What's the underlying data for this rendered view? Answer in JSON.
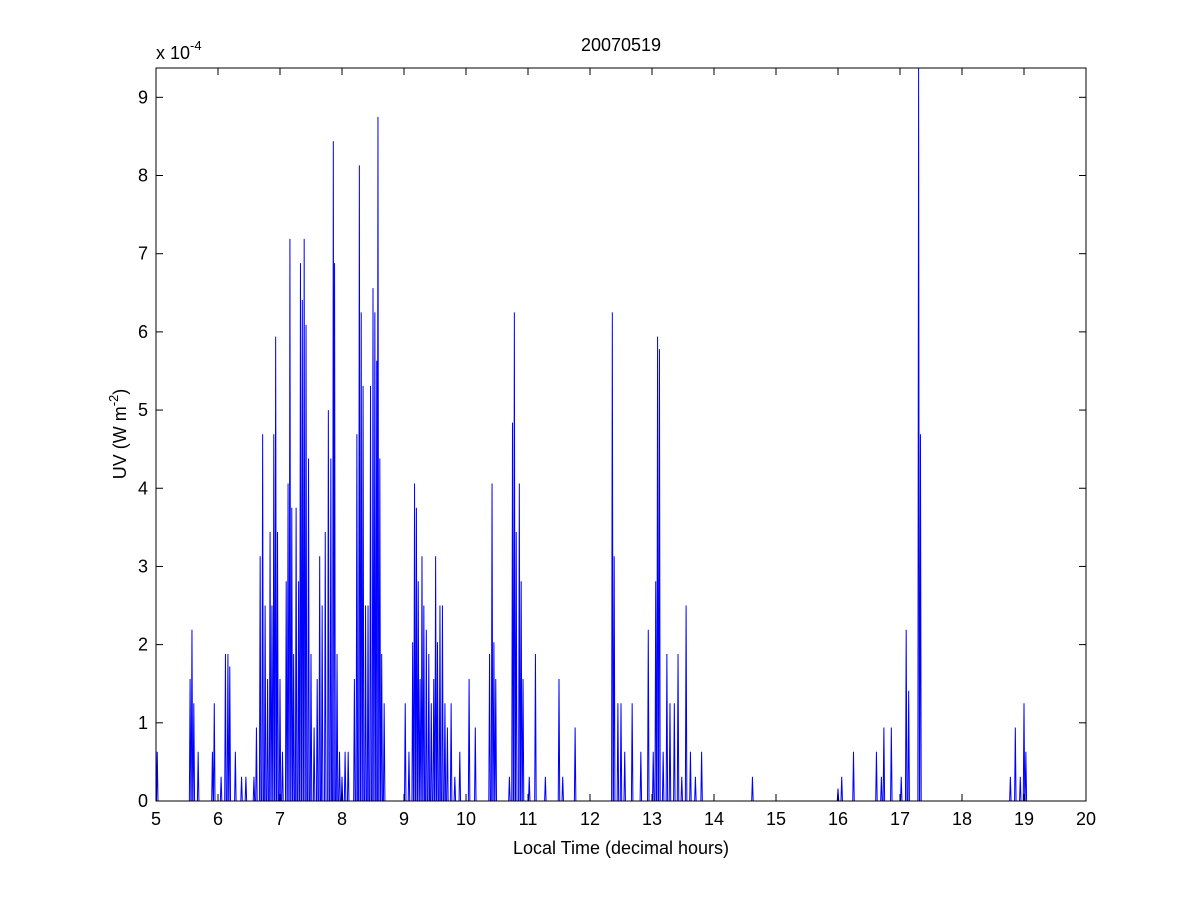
{
  "chart_data": {
    "type": "line",
    "title": "20070519",
    "xlabel": "Local Time (decimal hours)",
    "ylabel_main": "UV (W m",
    "ylabel_exp": "-2",
    "ylabel_close": ")",
    "multiplier_base": "x 10",
    "multiplier_exp": "-4",
    "xlim": [
      5,
      20
    ],
    "ylim": [
      0,
      9.375
    ],
    "xticks": [
      5,
      6,
      7,
      8,
      9,
      10,
      11,
      12,
      13,
      14,
      15,
      16,
      17,
      18,
      19,
      20
    ],
    "yticks": [
      0,
      1,
      2,
      3,
      4,
      5,
      6,
      7,
      8,
      9
    ],
    "grid": false,
    "line_color": "#0000ff",
    "y_unit_scale": "1e-4",
    "series": [
      {
        "peaks": [
          [
            5.02,
            0.63
          ],
          [
            5.55,
            1.56
          ],
          [
            5.58,
            2.19
          ],
          [
            5.61,
            1.25
          ],
          [
            5.68,
            0.63
          ],
          [
            5.91,
            0.63
          ],
          [
            5.94,
            1.25
          ],
          [
            6.05,
            0.31
          ],
          [
            6.12,
            1.88
          ],
          [
            6.16,
            1.88
          ],
          [
            6.19,
            1.72
          ],
          [
            6.28,
            0.63
          ],
          [
            6.38,
            0.31
          ],
          [
            6.45,
            0.31
          ],
          [
            6.58,
            0.31
          ],
          [
            6.62,
            0.94
          ],
          [
            6.68,
            3.13
          ],
          [
            6.72,
            4.69
          ],
          [
            6.76,
            2.5
          ],
          [
            6.8,
            1.56
          ],
          [
            6.84,
            3.44
          ],
          [
            6.87,
            2.5
          ],
          [
            6.9,
            4.69
          ],
          [
            6.93,
            5.94
          ],
          [
            6.96,
            3.44
          ],
          [
            7.0,
            1.56
          ],
          [
            7.04,
            0.63
          ],
          [
            7.1,
            2.81
          ],
          [
            7.13,
            4.06
          ],
          [
            7.16,
            7.19
          ],
          [
            7.19,
            3.75
          ],
          [
            7.22,
            1.88
          ],
          [
            7.26,
            3.75
          ],
          [
            7.3,
            2.81
          ],
          [
            7.33,
            6.88
          ],
          [
            7.36,
            6.41
          ],
          [
            7.39,
            7.19
          ],
          [
            7.42,
            6.09
          ],
          [
            7.46,
            4.38
          ],
          [
            7.5,
            1.88
          ],
          [
            7.55,
            0.94
          ],
          [
            7.6,
            1.56
          ],
          [
            7.64,
            3.13
          ],
          [
            7.68,
            2.5
          ],
          [
            7.73,
            3.44
          ],
          [
            7.78,
            5.0
          ],
          [
            7.82,
            4.38
          ],
          [
            7.86,
            8.44
          ],
          [
            7.88,
            6.88
          ],
          [
            7.92,
            1.88
          ],
          [
            7.96,
            0.63
          ],
          [
            8.0,
            0.31
          ],
          [
            8.05,
            0.63
          ],
          [
            8.1,
            0.63
          ],
          [
            8.2,
            1.56
          ],
          [
            8.24,
            4.69
          ],
          [
            8.28,
            8.13
          ],
          [
            8.31,
            6.25
          ],
          [
            8.34,
            5.31
          ],
          [
            8.38,
            2.5
          ],
          [
            8.42,
            2.5
          ],
          [
            8.46,
            5.31
          ],
          [
            8.5,
            6.56
          ],
          [
            8.53,
            6.25
          ],
          [
            8.56,
            5.63
          ],
          [
            8.58,
            8.75
          ],
          [
            8.61,
            4.38
          ],
          [
            8.64,
            1.88
          ],
          [
            8.68,
            1.25
          ],
          [
            9.02,
            1.25
          ],
          [
            9.08,
            0.63
          ],
          [
            9.14,
            2.03
          ],
          [
            9.17,
            4.06
          ],
          [
            9.2,
            3.75
          ],
          [
            9.23,
            2.81
          ],
          [
            9.26,
            1.56
          ],
          [
            9.29,
            3.13
          ],
          [
            9.32,
            2.5
          ],
          [
            9.36,
            2.19
          ],
          [
            9.4,
            1.88
          ],
          [
            9.44,
            1.25
          ],
          [
            9.48,
            1.56
          ],
          [
            9.51,
            3.13
          ],
          [
            9.54,
            2.03
          ],
          [
            9.58,
            2.5
          ],
          [
            9.62,
            2.5
          ],
          [
            9.66,
            1.25
          ],
          [
            9.7,
            0.94
          ],
          [
            9.76,
            1.25
          ],
          [
            9.82,
            0.31
          ],
          [
            9.9,
            0.63
          ],
          [
            10.05,
            1.56
          ],
          [
            10.15,
            0.94
          ],
          [
            10.38,
            1.88
          ],
          [
            10.42,
            4.06
          ],
          [
            10.45,
            2.03
          ],
          [
            10.48,
            1.56
          ],
          [
            10.7,
            0.31
          ],
          [
            10.75,
            4.84
          ],
          [
            10.78,
            6.25
          ],
          [
            10.81,
            3.44
          ],
          [
            10.86,
            4.06
          ],
          [
            10.89,
            2.81
          ],
          [
            10.92,
            1.56
          ],
          [
            11.02,
            0.31
          ],
          [
            11.12,
            1.88
          ],
          [
            11.28,
            0.31
          ],
          [
            11.5,
            1.56
          ],
          [
            11.56,
            0.31
          ],
          [
            11.76,
            0.94
          ],
          [
            12.36,
            6.25
          ],
          [
            12.39,
            3.13
          ],
          [
            12.45,
            1.25
          ],
          [
            12.5,
            1.25
          ],
          [
            12.56,
            0.63
          ],
          [
            12.68,
            1.25
          ],
          [
            12.82,
            0.63
          ],
          [
            12.94,
            2.19
          ],
          [
            13.02,
            0.63
          ],
          [
            13.06,
            2.81
          ],
          [
            13.09,
            5.94
          ],
          [
            13.12,
            5.78
          ],
          [
            13.18,
            0.63
          ],
          [
            13.24,
            1.88
          ],
          [
            13.29,
            1.25
          ],
          [
            13.36,
            1.25
          ],
          [
            13.42,
            1.88
          ],
          [
            13.48,
            0.31
          ],
          [
            13.55,
            2.5
          ],
          [
            13.62,
            0.63
          ],
          [
            13.7,
            0.31
          ],
          [
            13.8,
            0.63
          ],
          [
            14.62,
            0.31
          ],
          [
            16.0,
            0.16
          ],
          [
            16.06,
            0.31
          ],
          [
            16.25,
            0.63
          ],
          [
            16.62,
            0.63
          ],
          [
            16.7,
            0.31
          ],
          [
            16.74,
            0.94
          ],
          [
            16.86,
            0.94
          ],
          [
            17.02,
            0.31
          ],
          [
            17.1,
            2.19
          ],
          [
            17.14,
            1.41
          ],
          [
            17.3,
            9.38
          ],
          [
            17.33,
            4.69
          ],
          [
            18.78,
            0.31
          ],
          [
            18.86,
            0.94
          ],
          [
            18.94,
            0.31
          ],
          [
            19.0,
            1.25
          ],
          [
            19.03,
            0.63
          ]
        ]
      }
    ]
  }
}
